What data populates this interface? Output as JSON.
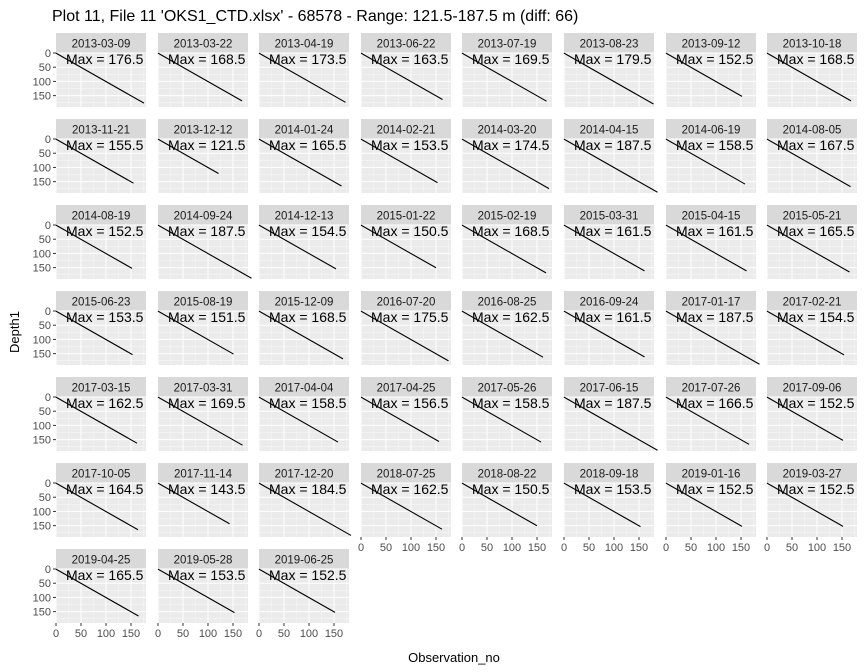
{
  "chart_data": {
    "type": "line",
    "title": "Plot 11, File 11 'OKS1_CTD.xlsx' - 68578 - Range: 121.5-187.5 m (diff: 66)",
    "xlabel": "Observation_no",
    "ylabel": "Depth1",
    "xlim": [
      0,
      180
    ],
    "ylim": [
      0,
      190
    ],
    "y_reversed": true,
    "x_ticks": [
      0,
      50,
      100,
      150
    ],
    "y_ticks": [
      0,
      50,
      100,
      150
    ],
    "grid": true,
    "layout": "facet_wrap 8 columns",
    "annotation_prefix": "Max = ",
    "panels": [
      {
        "date": "2013-03-09",
        "max": 176.5
      },
      {
        "date": "2013-03-22",
        "max": 168.5
      },
      {
        "date": "2013-04-19",
        "max": 173.5
      },
      {
        "date": "2013-06-22",
        "max": 163.5
      },
      {
        "date": "2013-07-19",
        "max": 169.5
      },
      {
        "date": "2013-08-23",
        "max": 179.5
      },
      {
        "date": "2013-09-12",
        "max": 152.5
      },
      {
        "date": "2013-10-18",
        "max": 168.5
      },
      {
        "date": "2013-11-21",
        "max": 155.5
      },
      {
        "date": "2013-12-12",
        "max": 121.5
      },
      {
        "date": "2014-01-24",
        "max": 165.5
      },
      {
        "date": "2014-02-21",
        "max": 153.5
      },
      {
        "date": "2014-03-20",
        "max": 174.5
      },
      {
        "date": "2014-04-15",
        "max": 187.5
      },
      {
        "date": "2014-06-19",
        "max": 158.5
      },
      {
        "date": "2014-08-05",
        "max": 167.5
      },
      {
        "date": "2014-08-19",
        "max": 152.5
      },
      {
        "date": "2014-09-24",
        "max": 187.5
      },
      {
        "date": "2014-12-13",
        "max": 154.5
      },
      {
        "date": "2015-01-22",
        "max": 150.5
      },
      {
        "date": "2015-02-19",
        "max": 168.5
      },
      {
        "date": "2015-03-31",
        "max": 161.5
      },
      {
        "date": "2015-04-15",
        "max": 161.5
      },
      {
        "date": "2015-05-21",
        "max": 165.5
      },
      {
        "date": "2015-06-23",
        "max": 153.5
      },
      {
        "date": "2015-08-19",
        "max": 151.5
      },
      {
        "date": "2015-12-09",
        "max": 168.5
      },
      {
        "date": "2016-07-20",
        "max": 175.5
      },
      {
        "date": "2016-08-25",
        "max": 162.5
      },
      {
        "date": "2016-09-24",
        "max": 161.5
      },
      {
        "date": "2017-01-17",
        "max": 187.5
      },
      {
        "date": "2017-02-21",
        "max": 154.5
      },
      {
        "date": "2017-03-15",
        "max": 162.5
      },
      {
        "date": "2017-03-31",
        "max": 169.5
      },
      {
        "date": "2017-04-04",
        "max": 158.5
      },
      {
        "date": "2017-04-25",
        "max": 156.5
      },
      {
        "date": "2017-05-26",
        "max": 158.5
      },
      {
        "date": "2017-06-15",
        "max": 187.5
      },
      {
        "date": "2017-07-26",
        "max": 166.5
      },
      {
        "date": "2017-09-06",
        "max": 152.5
      },
      {
        "date": "2017-10-05",
        "max": 164.5
      },
      {
        "date": "2017-11-14",
        "max": 143.5
      },
      {
        "date": "2017-12-20",
        "max": 184.5
      },
      {
        "date": "2018-07-25",
        "max": 162.5
      },
      {
        "date": "2018-08-22",
        "max": 150.5
      },
      {
        "date": "2018-09-18",
        "max": 153.5
      },
      {
        "date": "2019-01-16",
        "max": 152.5
      },
      {
        "date": "2019-03-27",
        "max": 152.5
      },
      {
        "date": "2019-04-25",
        "max": 165.5
      },
      {
        "date": "2019-05-28",
        "max": 153.5
      },
      {
        "date": "2019-06-25",
        "max": 152.5
      }
    ]
  }
}
